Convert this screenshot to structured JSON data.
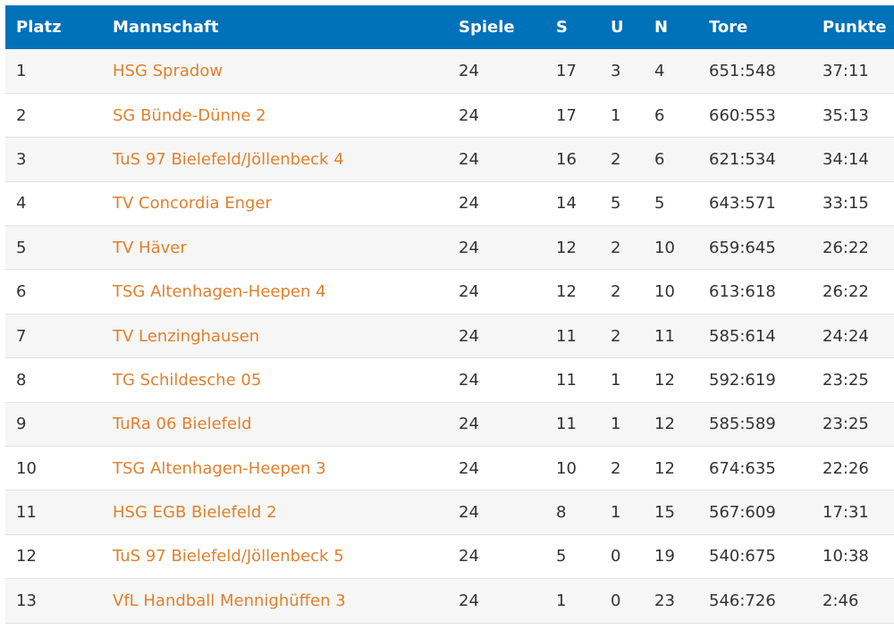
{
  "headers": {
    "platz": "Platz",
    "mannschaft": "Mannschaft",
    "spiele": "Spiele",
    "s": "S",
    "u": "U",
    "n": "N",
    "tore": "Tore",
    "punkte": "Punkte"
  },
  "rows": [
    {
      "platz": "1",
      "mannschaft": "HSG Spradow",
      "spiele": "24",
      "s": "17",
      "u": "3",
      "n": "4",
      "tore": "651:548",
      "punkte": "37:11"
    },
    {
      "platz": "2",
      "mannschaft": "SG Bünde-Dünne 2",
      "spiele": "24",
      "s": "17",
      "u": "1",
      "n": "6",
      "tore": "660:553",
      "punkte": "35:13"
    },
    {
      "platz": "3",
      "mannschaft": "TuS 97 Bielefeld/Jöllenbeck 4",
      "spiele": "24",
      "s": "16",
      "u": "2",
      "n": "6",
      "tore": "621:534",
      "punkte": "34:14"
    },
    {
      "platz": "4",
      "mannschaft": "TV Concordia Enger",
      "spiele": "24",
      "s": "14",
      "u": "5",
      "n": "5",
      "tore": "643:571",
      "punkte": "33:15"
    },
    {
      "platz": "5",
      "mannschaft": "TV Häver",
      "spiele": "24",
      "s": "12",
      "u": "2",
      "n": "10",
      "tore": "659:645",
      "punkte": "26:22"
    },
    {
      "platz": "6",
      "mannschaft": "TSG Altenhagen-Heepen 4",
      "spiele": "24",
      "s": "12",
      "u": "2",
      "n": "10",
      "tore": "613:618",
      "punkte": "26:22"
    },
    {
      "platz": "7",
      "mannschaft": "TV Lenzinghausen",
      "spiele": "24",
      "s": "11",
      "u": "2",
      "n": "11",
      "tore": "585:614",
      "punkte": "24:24"
    },
    {
      "platz": "8",
      "mannschaft": "TG Schildesche 05",
      "spiele": "24",
      "s": "11",
      "u": "1",
      "n": "12",
      "tore": "592:619",
      "punkte": "23:25"
    },
    {
      "platz": "9",
      "mannschaft": "TuRa 06 Bielefeld",
      "spiele": "24",
      "s": "11",
      "u": "1",
      "n": "12",
      "tore": "585:589",
      "punkte": "23:25"
    },
    {
      "platz": "10",
      "mannschaft": "TSG Altenhagen-Heepen 3",
      "spiele": "24",
      "s": "10",
      "u": "2",
      "n": "12",
      "tore": "674:635",
      "punkte": "22:26"
    },
    {
      "platz": "11",
      "mannschaft": "HSG EGB Bielefeld 2",
      "spiele": "24",
      "s": "8",
      "u": "1",
      "n": "15",
      "tore": "567:609",
      "punkte": "17:31"
    },
    {
      "platz": "12",
      "mannschaft": "TuS 97 Bielefeld/Jöllenbeck 5",
      "spiele": "24",
      "s": "5",
      "u": "0",
      "n": "19",
      "tore": "540:675",
      "punkte": "10:38"
    },
    {
      "platz": "13",
      "mannschaft": "VfL Handball Mennighüffen 3",
      "spiele": "24",
      "s": "1",
      "u": "0",
      "n": "23",
      "tore": "546:726",
      "punkte": "2:46"
    }
  ],
  "colors": {
    "header_bg": "#0072ba",
    "team_link": "#e0802e",
    "row_alt": "#f6f6f6"
  }
}
